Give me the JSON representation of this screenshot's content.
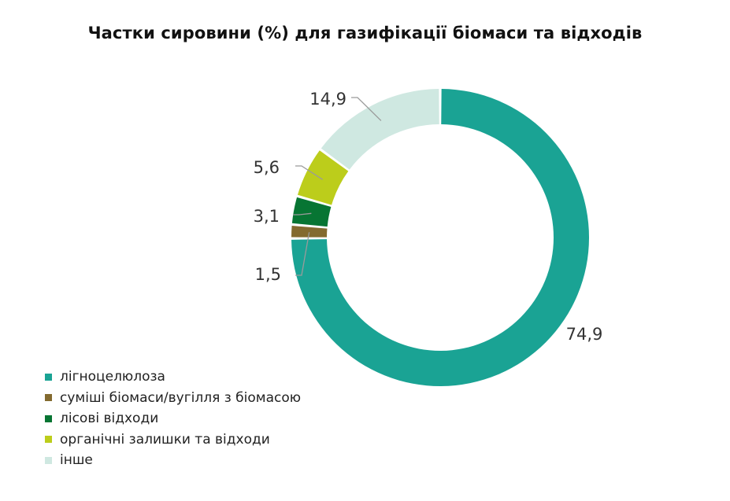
{
  "chart_data": {
    "type": "pie",
    "variant": "donut",
    "title": "Частки сировини (%) для газифікації біомаси та відходів",
    "categories": [
      "лігноцелюлоза",
      "суміші біомаси/вугілля з біомасою",
      "лісові відходи",
      "органічні залишки та відходи",
      "інше"
    ],
    "values": [
      74.9,
      1.5,
      3.1,
      5.6,
      14.9
    ],
    "value_labels": [
      "74,9",
      "1,5",
      "3,1",
      "5,6",
      "14,9"
    ],
    "colors": [
      "#1aa394",
      "#836a2f",
      "#077533",
      "#bccd1b",
      "#cfe8e1"
    ],
    "start": "top",
    "direction": "clockwise",
    "legend_position": "bottom-left"
  }
}
